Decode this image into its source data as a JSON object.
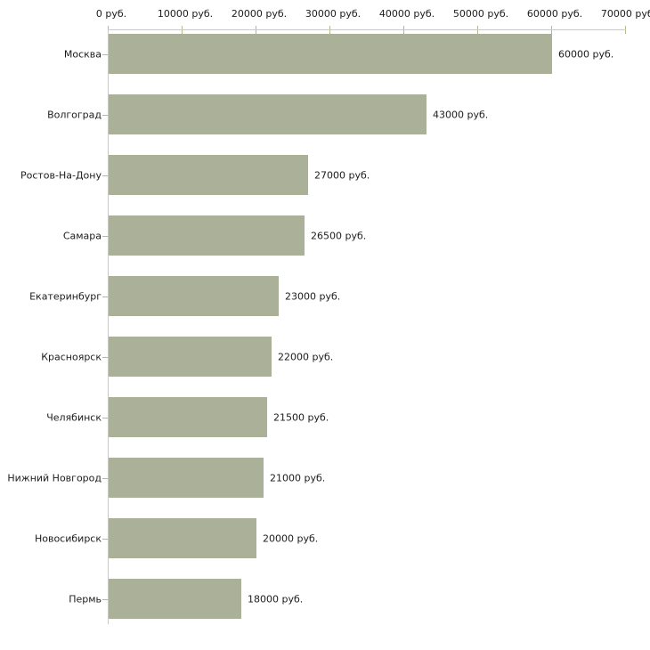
{
  "chart_data": {
    "type": "bar",
    "orientation": "horizontal",
    "title": "",
    "xlabel": "",
    "ylabel": "",
    "unit": "руб.",
    "categories": [
      "Москва",
      "Волгоград",
      "Ростов-На-Дону",
      "Самара",
      "Екатеринбург",
      "Красноярск",
      "Челябинск",
      "Нижний Новгород",
      "Новосибирск",
      "Пермь"
    ],
    "values": [
      60000,
      43000,
      27000,
      26500,
      23000,
      22000,
      21500,
      21000,
      20000,
      18000
    ],
    "value_labels": [
      "60000 руб.",
      "43000 руб.",
      "27000 руб.",
      "26500 руб.",
      "23000 руб.",
      "22000 руб.",
      "21500 руб.",
      "21000 руб.",
      "20000 руб.",
      "18000 руб."
    ],
    "x_axis": {
      "position": "top",
      "tick_values": [
        0,
        10000,
        20000,
        30000,
        40000,
        50000,
        60000,
        70000
      ],
      "tick_labels": [
        "0 руб.",
        "10000 руб.",
        "20000 руб.",
        "30000 руб.",
        "40000 руб.",
        "50000 руб.",
        "60000 руб.",
        "70000 руб."
      ]
    },
    "xlim": [
      0,
      70000
    ],
    "grid": false,
    "legend": false,
    "colors": {
      "bar_fill": "#abb199",
      "axis_line": "#c9c9c9",
      "tick_mark": "#b7b98a",
      "text": "#1c1c1c"
    }
  }
}
